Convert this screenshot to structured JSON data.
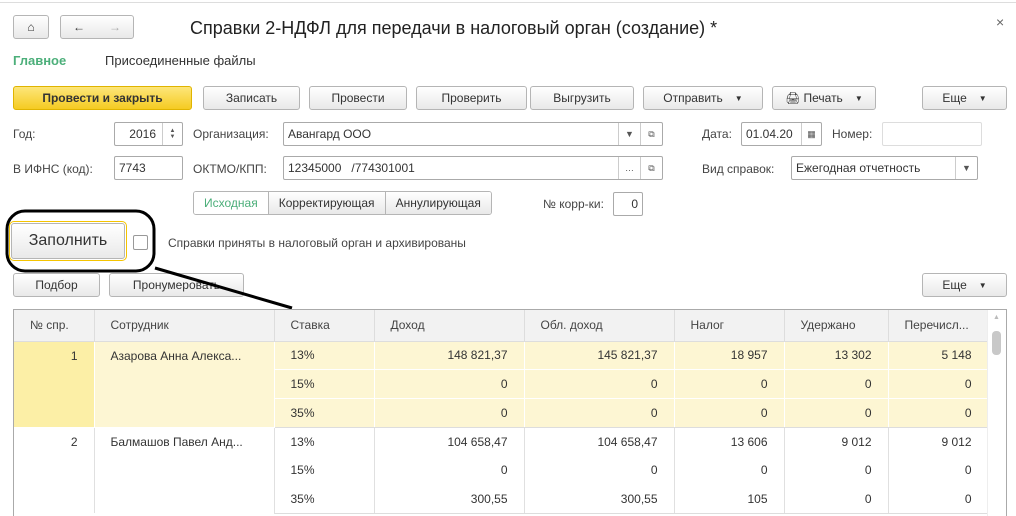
{
  "window": {
    "title": "Справки 2-НДФЛ для передачи в налоговый орган (создание) *",
    "close": "×"
  },
  "nav_tabs": [
    {
      "label": "Главное",
      "active": true
    },
    {
      "label": "Присоединенные файлы"
    }
  ],
  "toolbar": {
    "post_close": "Провести и закрыть",
    "save": "Записать",
    "post": "Провести",
    "check": "Проверить",
    "export": "Выгрузить",
    "send": "Отправить",
    "print": "Печать",
    "more": "Еще"
  },
  "form": {
    "year_label": "Год:",
    "year": "2016",
    "org_label": "Организация:",
    "org": "Авангард ООО",
    "date_label": "Дата:",
    "date": "01.04.20",
    "number_label": "Номер:",
    "number": "",
    "ifns_label": "В ИФНС (код):",
    "ifns": "7743",
    "oktmo_label": "ОКТМО/КПП:",
    "oktmo": "12345000   /774301001",
    "kind_label": "Вид справок:",
    "kind": "Ежегодная отчетность",
    "types": [
      "Исходная",
      "Корректирующая",
      "Аннулирующая"
    ],
    "corr_label": "№ корр-ки:",
    "corr": "0",
    "fill": "Заполнить",
    "accepted_label": "Справки приняты в налоговый орган и архивированы",
    "accepted": false
  },
  "table_toolbar": {
    "select": "Подбор",
    "renumber": "Пронумеровать",
    "more": "Еще"
  },
  "table": {
    "columns": [
      "№ спр.",
      "Сотрудник",
      "Ставка",
      "Доход",
      "Обл. доход",
      "Налог",
      "Удержано",
      "Перечисл..."
    ],
    "groups": [
      {
        "num": "1",
        "employee": "Азарова Анна Алекса...",
        "selected": true,
        "rows": [
          [
            "13%",
            "148 821,37",
            "145 821,37",
            "18 957",
            "13 302",
            "5 148"
          ],
          [
            "15%",
            "0",
            "0",
            "0",
            "0",
            "0"
          ],
          [
            "35%",
            "0",
            "0",
            "0",
            "0",
            "0"
          ]
        ]
      },
      {
        "num": "2",
        "employee": "Балмашов Павел Анд...",
        "selected": false,
        "rows": [
          [
            "13%",
            "104 658,47",
            "104 658,47",
            "13 606",
            "9 012",
            "9 012"
          ],
          [
            "15%",
            "0",
            "0",
            "0",
            "0",
            "0"
          ],
          [
            "35%",
            "300,55",
            "300,55",
            "105",
            "0",
            "0"
          ]
        ]
      }
    ]
  }
}
